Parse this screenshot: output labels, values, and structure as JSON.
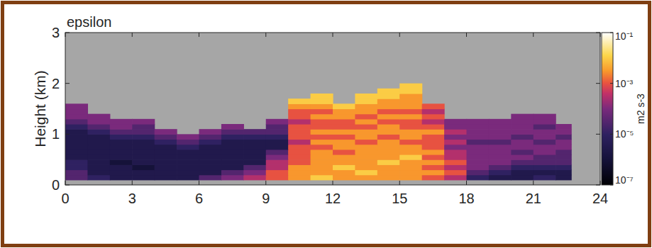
{
  "chart_data": {
    "type": "heatmap",
    "title": "epsilon",
    "y_label": "Height (km)",
    "x_edges": [
      0,
      1,
      2,
      3,
      4,
      5,
      6,
      7,
      8,
      9,
      10,
      11,
      12,
      13,
      14,
      15,
      16,
      17,
      18,
      19,
      20,
      21,
      22,
      22.7
    ],
    "y_edges": [
      0.1,
      0.2,
      0.3,
      0.4,
      0.5,
      0.6,
      0.7,
      0.8,
      0.9,
      1.0,
      1.1,
      1.2,
      1.3,
      1.4,
      1.5,
      1.6,
      1.7,
      1.8,
      1.9,
      2.0
    ],
    "values": [
      [
        3e-05,
        1e-05,
        3e-06,
        3e-06,
        3e-06,
        3e-06,
        3e-05,
        0.0001,
        0.0003,
        0.001,
        0.003,
        0.01,
        0.003,
        0.003,
        0.003,
        0.003,
        0.001,
        0.0003,
        1e-05,
        3e-06,
        3e-06,
        1e-05,
        3e-06
      ],
      [
        3e-05,
        3e-06,
        3e-06,
        3e-06,
        3e-06,
        3e-06,
        3e-06,
        3e-05,
        0.0001,
        0.001,
        0.003,
        0.003,
        0.003,
        0.01,
        0.003,
        0.003,
        0.003,
        0.001,
        3e-05,
        1e-05,
        3e-06,
        3e-06,
        3e-06
      ],
      [
        1e-05,
        3e-06,
        3e-06,
        1e-06,
        3e-06,
        3e-06,
        3e-06,
        3e-06,
        3e-05,
        0.0003,
        0.003,
        0.003,
        0.01,
        0.003,
        0.003,
        0.003,
        0.001,
        0.0003,
        0.0001,
        3e-05,
        1e-05,
        1e-05,
        1e-05
      ],
      [
        1e-05,
        3e-06,
        1e-06,
        3e-06,
        3e-06,
        3e-06,
        3e-06,
        3e-06,
        3e-06,
        0.0003,
        0.001,
        0.003,
        0.003,
        0.003,
        0.01,
        0.003,
        0.003,
        0.001,
        0.0001,
        0.0001,
        3e-05,
        3e-05,
        3e-05
      ],
      [
        3e-06,
        3e-06,
        3e-06,
        3e-06,
        3e-06,
        3e-06,
        3e-06,
        3e-06,
        3e-06,
        0.0001,
        0.001,
        0.003,
        0.003,
        0.003,
        0.003,
        0.01,
        0.001,
        0.0003,
        0.0001,
        0.0001,
        0.0001,
        3e-05,
        3e-05
      ],
      [
        3e-06,
        3e-06,
        3e-06,
        3e-06,
        3e-06,
        3e-06,
        3e-06,
        3e-06,
        3e-06,
        3e-05,
        0.001,
        0.003,
        0.001,
        0.003,
        0.003,
        0.003,
        0.003,
        0.0003,
        0.0001,
        0.0001,
        3e-05,
        0.0001,
        3e-05
      ],
      [
        3e-06,
        3e-06,
        3e-06,
        3e-06,
        3e-06,
        1e-05,
        3e-06,
        3e-06,
        3e-06,
        3e-06,
        0.001,
        0.001,
        0.003,
        0.003,
        0.003,
        0.003,
        0.001,
        0.0001,
        0.0001,
        0.0001,
        0.0001,
        0.0001,
        0.0001
      ],
      [
        3e-06,
        3e-06,
        3e-06,
        3e-06,
        1e-05,
        3e-05,
        1e-05,
        3e-06,
        3e-06,
        3e-06,
        0.0003,
        0.003,
        0.003,
        0.001,
        0.003,
        0.001,
        0.001,
        0.0003,
        3e-05,
        3e-05,
        0.0001,
        3e-05,
        0.0001
      ],
      [
        3e-06,
        3e-06,
        1e-05,
        1e-05,
        3e-05,
        0.0001,
        3e-05,
        1e-05,
        1e-05,
        1e-05,
        0.001,
        0.001,
        0.001,
        0.003,
        0.001,
        0.003,
        0.001,
        0.0001,
        0.0001,
        0.0001,
        3e-05,
        0.0001,
        3e-05
      ],
      [
        3e-06,
        1e-05,
        3e-05,
        3e-05,
        0.0001,
        null,
        0.0001,
        3e-05,
        3e-05,
        3e-05,
        0.001,
        0.003,
        0.003,
        0.003,
        0.003,
        0.003,
        0.003,
        0.0003,
        0.0001,
        0.0001,
        0.0001,
        0.0001,
        0.0001
      ],
      [
        1e-05,
        3e-05,
        0.0001,
        3e-05,
        null,
        null,
        null,
        0.0001,
        null,
        3e-05,
        0.001,
        0.001,
        0.001,
        0.001,
        0.003,
        0.001,
        0.001,
        0.0001,
        0.0001,
        0.0001,
        0.0001,
        3e-05,
        0.0001
      ],
      [
        3e-05,
        0.0001,
        0.0001,
        0.0001,
        null,
        null,
        null,
        null,
        null,
        0.0001,
        0.0003,
        0.001,
        0.001,
        0.003,
        0.001,
        0.001,
        0.0003,
        0.0001,
        0.0001,
        0.0001,
        0.0001,
        0.0001,
        null
      ],
      [
        0.0001,
        0.0001,
        null,
        null,
        null,
        null,
        null,
        null,
        null,
        null,
        0.001,
        0.003,
        0.003,
        0.001,
        0.003,
        0.003,
        0.001,
        null,
        null,
        null,
        0.0001,
        0.0001,
        null
      ],
      [
        0.0001,
        null,
        null,
        null,
        null,
        null,
        null,
        null,
        null,
        null,
        0.001,
        0.001,
        0.003,
        0.003,
        0.001,
        0.001,
        0.0003,
        null,
        null,
        null,
        null,
        null,
        null
      ],
      [
        0.0001,
        null,
        null,
        null,
        null,
        null,
        null,
        null,
        null,
        null,
        0.003,
        0.003,
        0.01,
        0.003,
        0.003,
        0.003,
        0.001,
        null,
        null,
        null,
        null,
        null,
        null
      ],
      [
        null,
        null,
        null,
        null,
        null,
        null,
        null,
        null,
        null,
        null,
        0.01,
        0.01,
        null,
        0.01,
        0.003,
        0.003,
        null,
        null,
        null,
        null,
        null,
        null,
        null
      ],
      [
        null,
        null,
        null,
        null,
        null,
        null,
        null,
        null,
        null,
        null,
        null,
        0.01,
        null,
        0.01,
        0.01,
        0.003,
        null,
        null,
        null,
        null,
        null,
        null,
        null
      ],
      [
        null,
        null,
        null,
        null,
        null,
        null,
        null,
        null,
        null,
        null,
        null,
        null,
        null,
        null,
        0.01,
        0.01,
        null,
        null,
        null,
        null,
        null,
        null,
        null
      ],
      [
        null,
        null,
        null,
        null,
        null,
        null,
        null,
        null,
        null,
        null,
        null,
        null,
        null,
        null,
        null,
        0.01,
        null,
        null,
        null,
        null,
        null,
        null,
        null
      ]
    ],
    "xlim": [
      0,
      24
    ],
    "ylim": [
      0,
      3
    ],
    "xticks": [
      0,
      3,
      6,
      9,
      12,
      15,
      18,
      21,
      24
    ],
    "yticks": [
      0,
      1,
      2,
      3
    ],
    "colorbar": {
      "label": "m2 s-3",
      "range": [
        1e-07,
        0.1
      ],
      "ticks": [
        {
          "value": 0.1,
          "label": "10⁻¹"
        },
        {
          "value": 0.001,
          "label": "10⁻³"
        },
        {
          "value": 1e-05,
          "label": "10⁻⁵"
        },
        {
          "value": 1e-07,
          "label": "10⁻⁷"
        }
      ]
    }
  }
}
